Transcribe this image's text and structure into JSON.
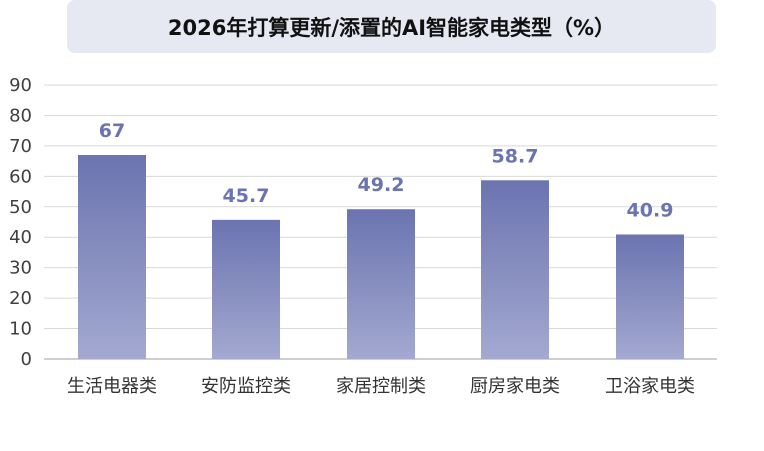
{
  "colors": {
    "bar_top": "#6b74b0",
    "bar_bottom": "#a3a9d0",
    "label": "#6b74b0",
    "grid": "#d9d9d9",
    "axis": "#bfbfbf",
    "title_bg": "#e6e8f2"
  },
  "chart_data": {
    "type": "bar",
    "title": "2026年打算更新/添置的AI智能家电类型（%）",
    "categories": [
      "生活电器类",
      "安防监控类",
      "家居控制类",
      "厨房家电类",
      "卫浴家电类"
    ],
    "values": [
      67,
      45.7,
      49.2,
      58.7,
      40.9
    ],
    "data_labels": [
      "67",
      "45.7",
      "49.2",
      "58.7",
      "40.9"
    ],
    "ylim": [
      0,
      90
    ],
    "yticks": [
      0,
      10,
      20,
      30,
      40,
      50,
      60,
      70,
      80,
      90
    ],
    "grid": true,
    "legend": "none",
    "xlabel": "",
    "ylabel": ""
  }
}
